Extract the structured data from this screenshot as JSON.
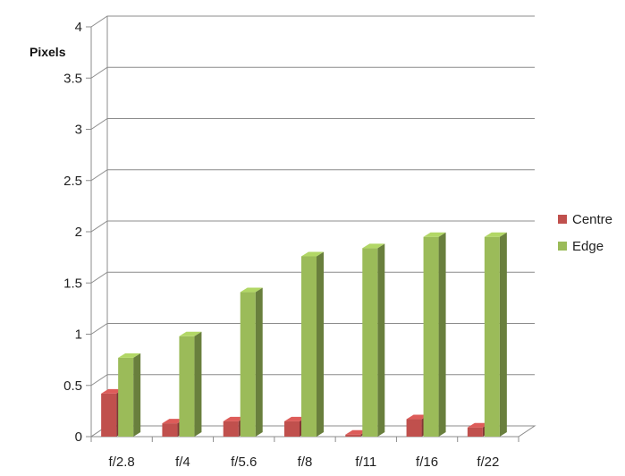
{
  "chart_data": {
    "type": "bar",
    "title": "",
    "xlabel": "",
    "ylabel": "Pixels",
    "categories": [
      "f/2.8",
      "f/4",
      "f/5.6",
      "f/8",
      "f/11",
      "f/16",
      "f/22"
    ],
    "series": [
      {
        "name": "Centre",
        "color": "#c0504d",
        "values": [
          0.42,
          0.13,
          0.15,
          0.15,
          0.02,
          0.17,
          0.09
        ]
      },
      {
        "name": "Edge",
        "color": "#9bbb59",
        "values": [
          0.77,
          0.98,
          1.41,
          1.76,
          1.84,
          1.95,
          1.95
        ]
      }
    ],
    "ylim": [
      0,
      4
    ],
    "yticks": [
      "0",
      "0.5",
      "1",
      "1.5",
      "2",
      "2.5",
      "3",
      "3.5",
      "4"
    ],
    "grid": true,
    "legend_position": "right",
    "style": "3d-column"
  }
}
